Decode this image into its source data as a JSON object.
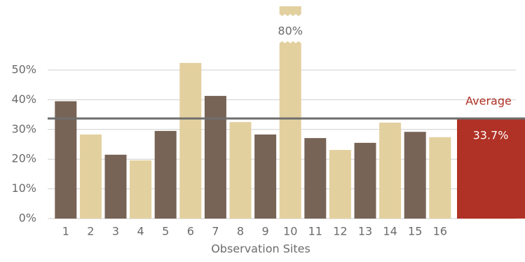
{
  "chart_data": {
    "type": "bar",
    "categories": [
      "1",
      "2",
      "3",
      "4",
      "5",
      "6",
      "7",
      "8",
      "9",
      "10",
      "11",
      "12",
      "13",
      "14",
      "15",
      "16"
    ],
    "values": [
      39.5,
      28.3,
      21.5,
      19.6,
      29.5,
      52.4,
      41.3,
      32.5,
      28.3,
      80,
      27.1,
      23.1,
      25.5,
      32.3,
      29.2,
      27.4
    ],
    "value_labels": [
      null,
      null,
      null,
      null,
      null,
      null,
      null,
      null,
      null,
      "80%",
      null,
      null,
      null,
      null,
      null,
      null
    ],
    "colors": [
      "#776457",
      "#e3d09f",
      "#776457",
      "#e3d09f",
      "#776457",
      "#e3d09f",
      "#776457",
      "#e3d09f",
      "#776457",
      "#e3d09f",
      "#776457",
      "#e3d09f",
      "#776457",
      "#e3d09f",
      "#776457",
      "#e3d09f"
    ],
    "xlabel": "Observation Sites",
    "ylim": [
      0,
      55
    ],
    "yticks": [
      {
        "value": 0,
        "label": "0%"
      },
      {
        "value": 10,
        "label": "10%"
      },
      {
        "value": 20,
        "label": "20%"
      },
      {
        "value": 30,
        "label": "30%"
      },
      {
        "value": 40,
        "label": "40%"
      },
      {
        "value": 50,
        "label": "50%"
      }
    ],
    "grid": true,
    "average": {
      "label": "Average",
      "value": 33.7,
      "value_label": "33.7%",
      "color": "#b03125"
    }
  }
}
